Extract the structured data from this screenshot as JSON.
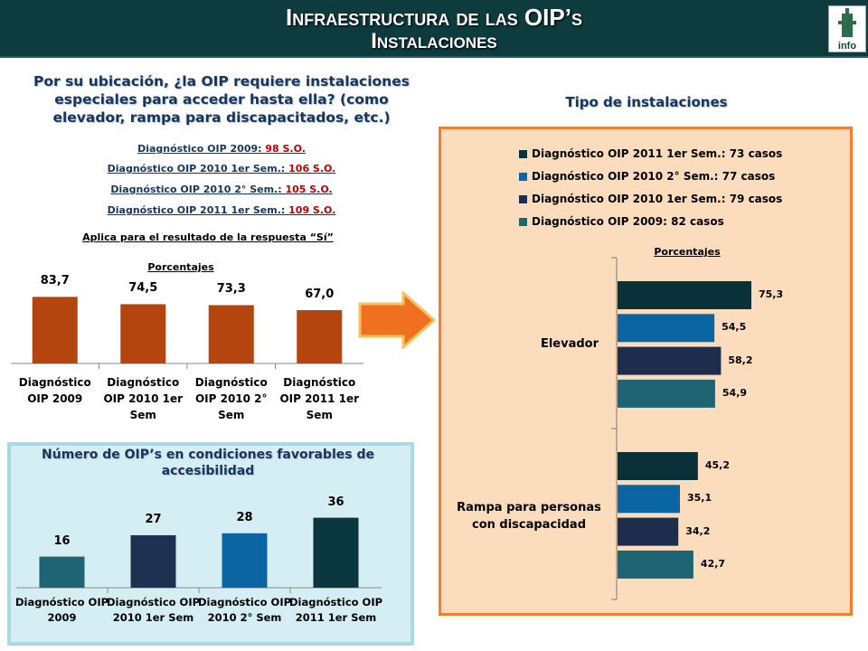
{
  "header": {
    "title_line1": "Infraestructura de las OIP’s",
    "title_line2": "Instalaciones",
    "logo_text": "info"
  },
  "question": {
    "text": "Por su ubicación, ¿la OIP requiere instalaciones especiales para acceder hasta ella? (como elevador, rampa para discapacitados, etc.)",
    "diagnostics": [
      {
        "label": "Diagnóstico  OIP 2009: ",
        "count": "98  S.O."
      },
      {
        "label": "Diagnóstico  OIP 2010  1er Sem.: ",
        "count": "106  S.O."
      },
      {
        "label": "Diagnóstico  OIP 2010  2° Sem.: ",
        "count": "105  S.O."
      },
      {
        "label": "Diagnóstico  OIP 2011  1er Sem.: ",
        "count": "109  S.O."
      }
    ],
    "note": "Aplica para el resultado de la respuesta “Sí”"
  },
  "second_panel": {
    "title": "Número de OIP’s en condiciones favorables de accesibilidad"
  },
  "right_panel": {
    "title": "Tipo de instalaciones"
  },
  "chart_data": [
    {
      "type": "bar",
      "title": "Porcentajes",
      "categories": [
        "Diagnóstico OIP 2009",
        "Diagnóstico OIP 2010 1er Sem",
        "Diagnóstico OIP 2010 2° Sem",
        "Diagnóstico OIP 2011 1er Sem"
      ],
      "values": [
        83.7,
        74.5,
        73.3,
        67.0
      ],
      "value_labels": [
        "83,7",
        "74,5",
        "73,3",
        "67,0"
      ],
      "ylim": [
        0,
        100
      ],
      "color": "#b5450f",
      "grid": false
    },
    {
      "type": "bar",
      "title": "",
      "categories": [
        "Diagnóstico OIP 2009",
        "Diagnóstico OIP 2010 1er Sem",
        "Diagnóstico OIP 2010 2° Sem",
        "Diagnóstico OIP 2011 1er Sem"
      ],
      "values": [
        16,
        27,
        28,
        36
      ],
      "value_labels": [
        "16",
        "27",
        "28",
        "36"
      ],
      "ylim": [
        0,
        40
      ],
      "colors": [
        "#1f6475",
        "#1f3150",
        "#0b65a3",
        "#0a3640"
      ],
      "grid": false
    },
    {
      "type": "bar",
      "orientation": "horizontal",
      "title": "Porcentajes",
      "categories": [
        "Elevador",
        "Rampa para personas con discapacidad"
      ],
      "series": [
        {
          "name": "Diagnóstico OIP 2011 1er Sem.: 73 casos",
          "color": "#0a3138",
          "values": [
            75.3,
            45.2
          ],
          "value_labels": [
            "75,3",
            "45,2"
          ]
        },
        {
          "name": "Diagnóstico OIP 2010 2° Sem.: 77 casos",
          "color": "#0b65a3",
          "values": [
            54.5,
            35.1
          ],
          "value_labels": [
            "54,5",
            "35,1"
          ]
        },
        {
          "name": "Diagnóstico OIP 2010 1er Sem.: 79 casos",
          "color": "#1e2d4e",
          "values": [
            58.2,
            34.2
          ],
          "value_labels": [
            "58,2",
            "34,2"
          ]
        },
        {
          "name": "Diagnóstico OIP 2009: 82 casos",
          "color": "#1f6475",
          "values": [
            54.9,
            42.7
          ],
          "value_labels": [
            "54,9",
            "42,7"
          ]
        }
      ],
      "xlim": [
        0,
        100
      ],
      "legend": "top",
      "grid": false
    }
  ]
}
